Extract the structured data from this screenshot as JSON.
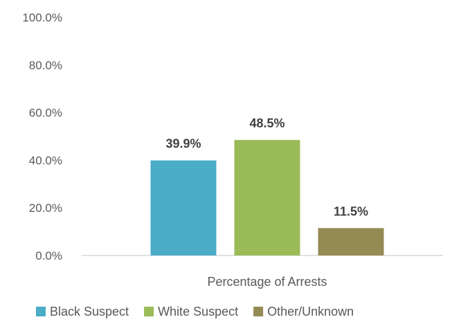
{
  "chart_data": {
    "type": "bar",
    "categories": [
      "Percentage of Arrests"
    ],
    "series": [
      {
        "name": "Black Suspect",
        "values": [
          39.9
        ],
        "label": "39.9%",
        "color": "#4bacc6"
      },
      {
        "name": "White Suspect",
        "values": [
          48.5
        ],
        "label": "48.5%",
        "color": "#9bbb59"
      },
      {
        "name": "Other/Unknown",
        "values": [
          11.5
        ],
        "label": "11.5%",
        "color": "#948a54"
      }
    ],
    "y_ticks": [
      "0.0%",
      "20.0%",
      "40.0%",
      "60.0%",
      "80.0%",
      "100.0%"
    ],
    "ylim": [
      0,
      100
    ],
    "grid": false,
    "legend_position": "bottom"
  }
}
